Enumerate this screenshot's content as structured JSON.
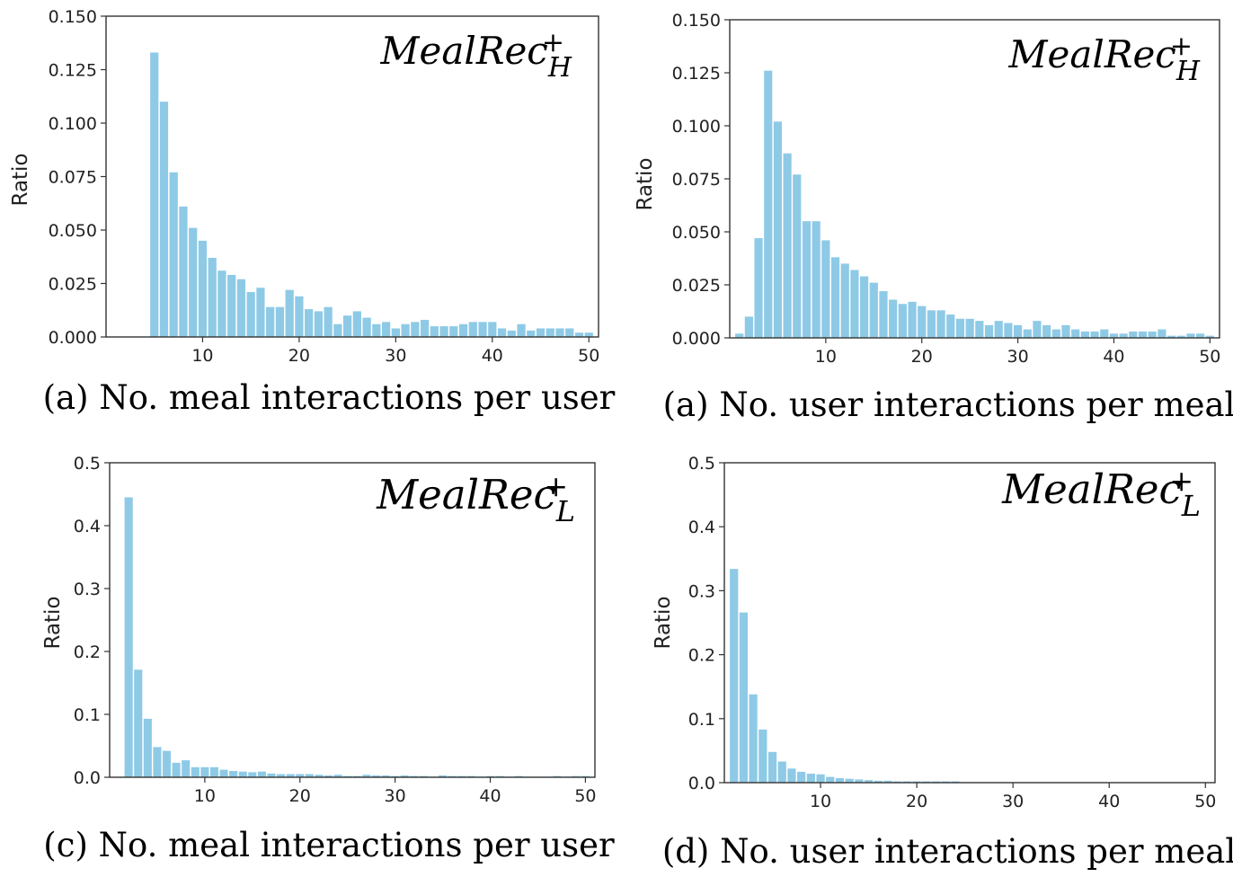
{
  "chart_data": [
    {
      "type": "bar",
      "title": "(a) No. meal interactions per user",
      "annotation": {
        "base": "MealRec",
        "sup": "+",
        "sub": "H"
      },
      "xlabel": "",
      "ylabel": "Ratio",
      "xlim": [
        0,
        51
      ],
      "ylim": [
        0,
        0.15
      ],
      "xticks": [
        "10",
        "20",
        "30",
        "40",
        "50"
      ],
      "yticks": [
        "0.000",
        "0.025",
        "0.050",
        "0.075",
        "0.100",
        "0.125",
        "0.150"
      ],
      "ytick_values": [
        0,
        0.025,
        0.05,
        0.075,
        0.1,
        0.125,
        0.15
      ],
      "x": [
        5,
        6,
        7,
        8,
        9,
        10,
        11,
        12,
        13,
        14,
        15,
        16,
        17,
        18,
        19,
        20,
        21,
        22,
        23,
        24,
        25,
        26,
        27,
        28,
        29,
        30,
        31,
        32,
        33,
        34,
        35,
        36,
        37,
        38,
        39,
        40,
        41,
        42,
        43,
        44,
        45,
        46,
        47,
        48,
        49,
        50
      ],
      "values": [
        0.133,
        0.11,
        0.077,
        0.061,
        0.051,
        0.045,
        0.037,
        0.031,
        0.029,
        0.027,
        0.021,
        0.023,
        0.014,
        0.014,
        0.022,
        0.019,
        0.013,
        0.012,
        0.014,
        0.006,
        0.01,
        0.012,
        0.009,
        0.006,
        0.007,
        0.004,
        0.006,
        0.007,
        0.008,
        0.005,
        0.005,
        0.005,
        0.006,
        0.007,
        0.007,
        0.007,
        0.004,
        0.003,
        0.006,
        0.003,
        0.004,
        0.004,
        0.004,
        0.004,
        0.002,
        0.002
      ]
    },
    {
      "type": "bar",
      "title": "(a) No. user interactions per meal",
      "annotation": {
        "base": "MealRec",
        "sup": "+",
        "sub": "H"
      },
      "xlabel": "",
      "ylabel": "Ratio",
      "xlim": [
        0,
        51
      ],
      "ylim": [
        0,
        0.15
      ],
      "xticks": [
        "10",
        "20",
        "30",
        "40",
        "50"
      ],
      "yticks": [
        "0.000",
        "0.025",
        "0.050",
        "0.075",
        "0.100",
        "0.125",
        "0.150"
      ],
      "ytick_values": [
        0,
        0.025,
        0.05,
        0.075,
        0.1,
        0.125,
        0.15
      ],
      "x": [
        1,
        2,
        3,
        4,
        5,
        6,
        7,
        8,
        9,
        10,
        11,
        12,
        13,
        14,
        15,
        16,
        17,
        18,
        19,
        20,
        21,
        22,
        23,
        24,
        25,
        26,
        27,
        28,
        29,
        30,
        31,
        32,
        33,
        34,
        35,
        36,
        37,
        38,
        39,
        40,
        41,
        42,
        43,
        44,
        45,
        46,
        47,
        48,
        49,
        50
      ],
      "values": [
        0.002,
        0.01,
        0.047,
        0.126,
        0.102,
        0.087,
        0.077,
        0.055,
        0.055,
        0.046,
        0.038,
        0.035,
        0.032,
        0.029,
        0.026,
        0.022,
        0.018,
        0.016,
        0.017,
        0.015,
        0.013,
        0.013,
        0.011,
        0.009,
        0.009,
        0.008,
        0.006,
        0.008,
        0.007,
        0.006,
        0.004,
        0.008,
        0.006,
        0.004,
        0.006,
        0.004,
        0.003,
        0.003,
        0.004,
        0.002,
        0.002,
        0.003,
        0.003,
        0.003,
        0.004,
        0.001,
        0.001,
        0.002,
        0.002,
        0.001
      ]
    },
    {
      "type": "bar",
      "title": "(c) No. meal interactions per user",
      "annotation": {
        "base": "MealRec",
        "sup": "+",
        "sub": "L"
      },
      "xlabel": "",
      "ylabel": "Ratio",
      "xlim": [
        0,
        51
      ],
      "ylim": [
        0,
        0.5
      ],
      "xticks": [
        "10",
        "20",
        "30",
        "40",
        "50"
      ],
      "yticks": [
        "0.0",
        "0.1",
        "0.2",
        "0.3",
        "0.4",
        "0.5"
      ],
      "ytick_values": [
        0,
        0.1,
        0.2,
        0.3,
        0.4,
        0.5
      ],
      "x": [
        2,
        3,
        4,
        5,
        6,
        7,
        8,
        9,
        10,
        11,
        12,
        13,
        14,
        15,
        16,
        17,
        18,
        19,
        20,
        21,
        22,
        23,
        24,
        25,
        26,
        27,
        28,
        29,
        30,
        31,
        32,
        33,
        34,
        35,
        36,
        37,
        38,
        39,
        40,
        41,
        42,
        43,
        44,
        45,
        46,
        47,
        48,
        49,
        50
      ],
      "values": [
        0.445,
        0.171,
        0.093,
        0.048,
        0.042,
        0.023,
        0.027,
        0.016,
        0.016,
        0.016,
        0.012,
        0.01,
        0.009,
        0.008,
        0.009,
        0.006,
        0.005,
        0.005,
        0.005,
        0.005,
        0.004,
        0.003,
        0.004,
        0.002,
        0.002,
        0.004,
        0.003,
        0.003,
        0.002,
        0.003,
        0.002,
        0.002,
        0.001,
        0.003,
        0.002,
        0.002,
        0.002,
        0.001,
        0.002,
        0.002,
        0.001,
        0.002,
        0.001,
        0.001,
        0.001,
        0.002,
        0.001,
        0.002,
        0.002
      ]
    },
    {
      "type": "bar",
      "title": "(d) No. user interactions per meal",
      "annotation": {
        "base": "MealRec",
        "sup": "+",
        "sub": "L"
      },
      "xlabel": "",
      "ylabel": "Ratio",
      "xlim": [
        0,
        51
      ],
      "ylim": [
        0,
        0.5
      ],
      "xticks": [
        "10",
        "20",
        "30",
        "40",
        "50"
      ],
      "yticks": [
        "0.0",
        "0.1",
        "0.2",
        "0.3",
        "0.4",
        "0.5"
      ],
      "ytick_values": [
        0,
        0.1,
        0.2,
        0.3,
        0.4,
        0.5
      ],
      "x": [
        1,
        2,
        3,
        4,
        5,
        6,
        7,
        8,
        9,
        10,
        11,
        12,
        13,
        14,
        15,
        16,
        17,
        18,
        19,
        20,
        21,
        22,
        23,
        24
      ],
      "values": [
        0.334,
        0.266,
        0.138,
        0.083,
        0.048,
        0.033,
        0.022,
        0.017,
        0.014,
        0.013,
        0.009,
        0.007,
        0.006,
        0.005,
        0.004,
        0.003,
        0.003,
        0.002,
        0.002,
        0.002,
        0.002,
        0.002,
        0.002,
        0.002
      ]
    }
  ]
}
